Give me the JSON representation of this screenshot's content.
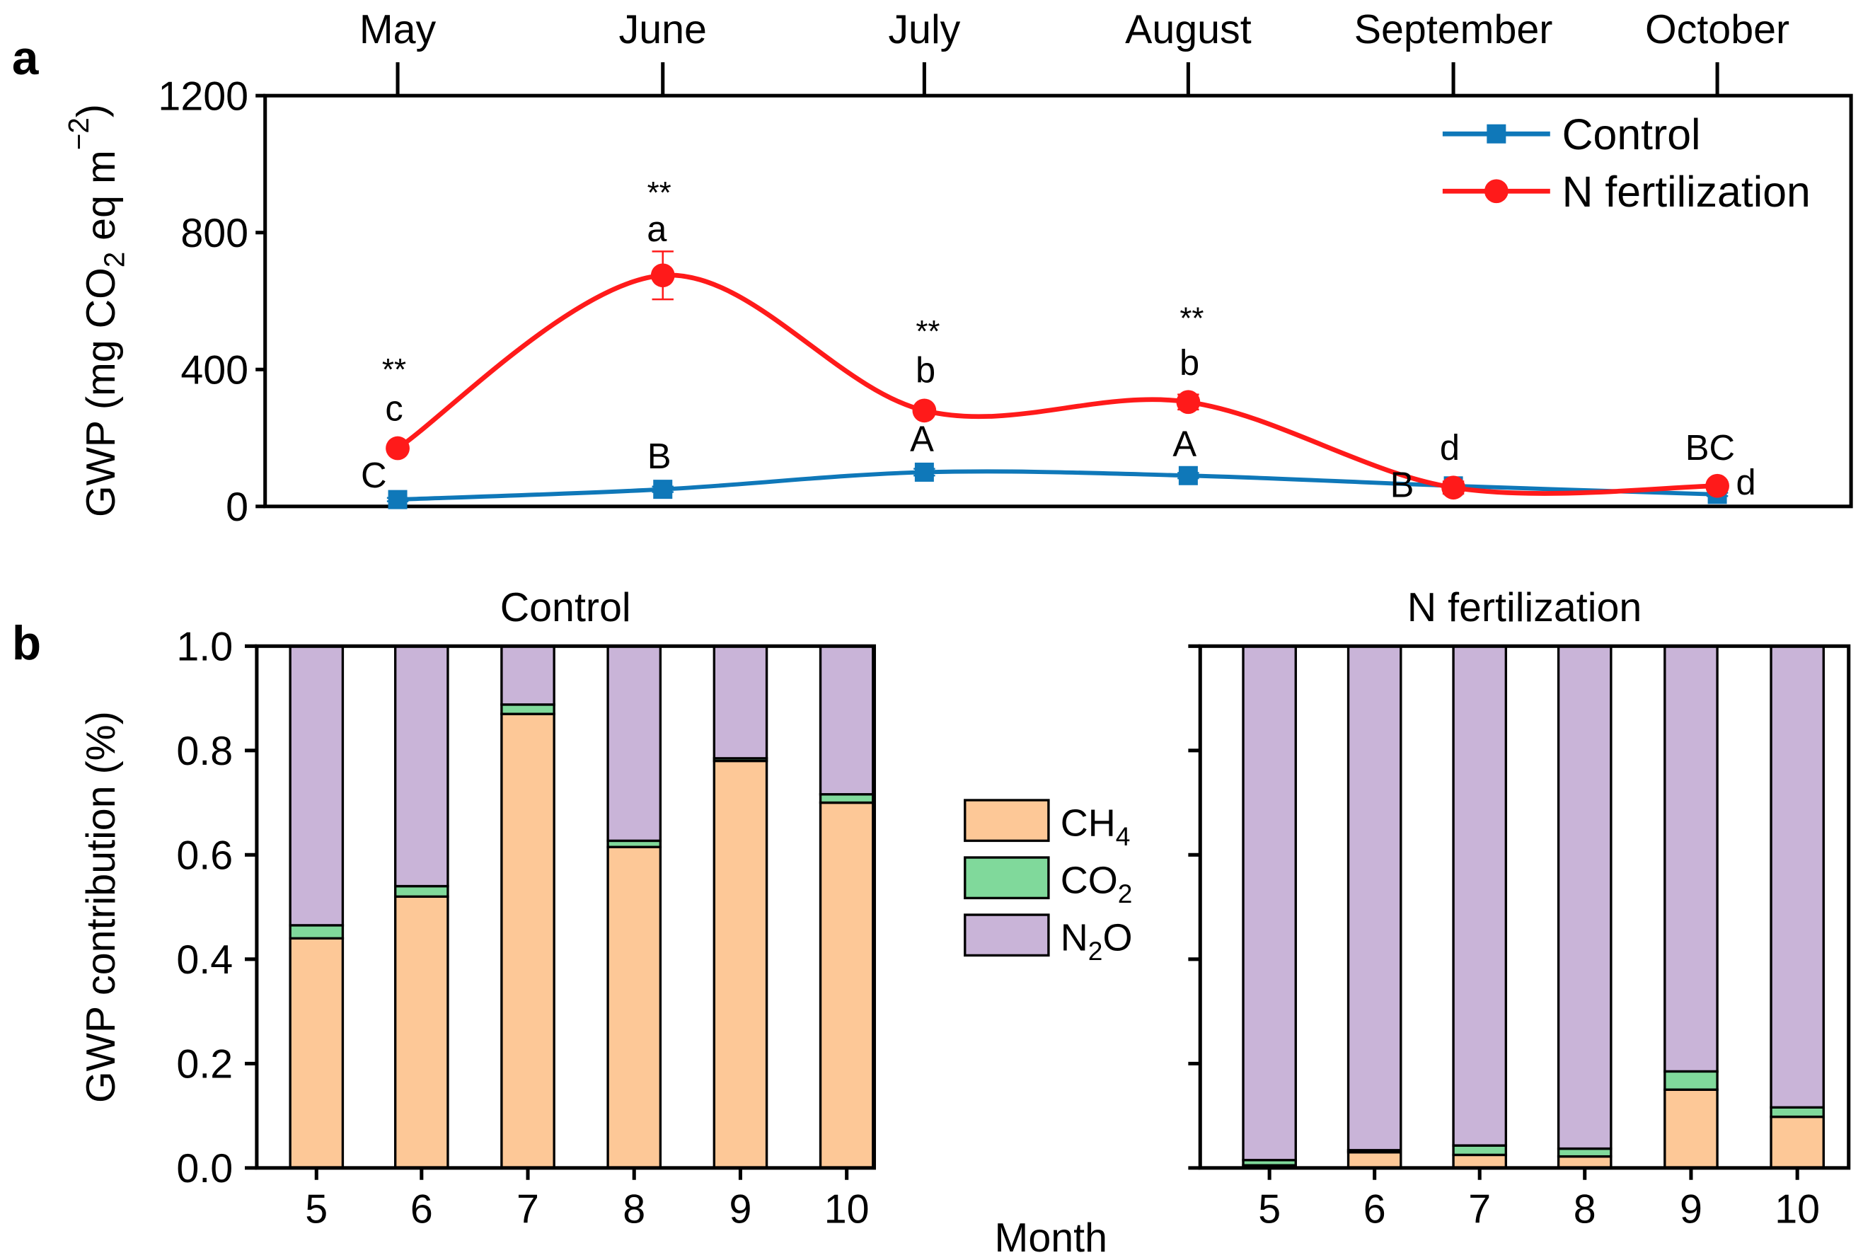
{
  "chart_data": [
    {
      "panel": "a",
      "type": "line",
      "x": [
        "May",
        "June",
        "July",
        "August",
        "September",
        "October"
      ],
      "ylabel": "GWP (mg CO2 eq m−2)",
      "ylabel_parts": {
        "pre": "GWP (mg CO",
        "sub": "2",
        "mid": " eq m",
        "sup": "−2",
        "post": ")"
      },
      "ylim": [
        0,
        1200
      ],
      "yticks": [
        "0",
        "400",
        "800",
        "1200"
      ],
      "legend_position": "top-right",
      "series": [
        {
          "name": "Control",
          "color": "#0f78b9",
          "marker": "square",
          "values": [
            20,
            50,
            100,
            90,
            60,
            35
          ],
          "errors": [
            5,
            8,
            10,
            8,
            6,
            5
          ],
          "letters": [
            "C",
            "B",
            "A",
            "A",
            "B",
            "BC"
          ]
        },
        {
          "name": "N fertilization",
          "color": "#ff1a1a",
          "marker": "circle",
          "values": [
            170,
            675,
            280,
            305,
            55,
            60
          ],
          "errors": [
            10,
            70,
            12,
            22,
            18,
            10
          ],
          "letters": [
            "c",
            "a",
            "b",
            "b",
            "d",
            "d"
          ]
        }
      ],
      "significance": [
        "**",
        "**",
        "**",
        "**",
        "",
        ""
      ]
    },
    {
      "panel": "b",
      "type": "bar",
      "stacked": true,
      "ylabel": "GWP contribution (%)",
      "xlabel": "Month",
      "ylim": [
        0,
        1.0
      ],
      "yticks": [
        "0.0",
        "0.2",
        "0.4",
        "0.6",
        "0.8",
        "1.0"
      ],
      "categories": [
        "5",
        "6",
        "7",
        "8",
        "9",
        "10"
      ],
      "legend": [
        {
          "name": "CH4",
          "base": "CH",
          "sub": "4",
          "color": "#fdc897"
        },
        {
          "name": "CO2",
          "base": "CO",
          "sub": "2",
          "color": "#80d99b"
        },
        {
          "name": "N2O",
          "base": "N",
          "sub": "2",
          "tail": "O",
          "color": "#c9b4d8"
        }
      ],
      "subplots": [
        {
          "title": "Control",
          "CH4": [
            0.44,
            0.52,
            0.87,
            0.615,
            0.78,
            0.7
          ],
          "CO2": [
            0.025,
            0.02,
            0.018,
            0.012,
            0.005,
            0.016
          ],
          "N2O": [
            0.535,
            0.46,
            0.112,
            0.373,
            0.215,
            0.284
          ]
        },
        {
          "title": "N fertilization",
          "CH4": [
            0.005,
            0.03,
            0.025,
            0.022,
            0.15,
            0.098
          ],
          "CO2": [
            0.01,
            0.004,
            0.018,
            0.015,
            0.035,
            0.018
          ],
          "N2O": [
            0.985,
            0.966,
            0.957,
            0.963,
            0.815,
            0.884
          ]
        }
      ]
    }
  ],
  "labels": {
    "panel_a": "a",
    "panel_b": "b"
  }
}
